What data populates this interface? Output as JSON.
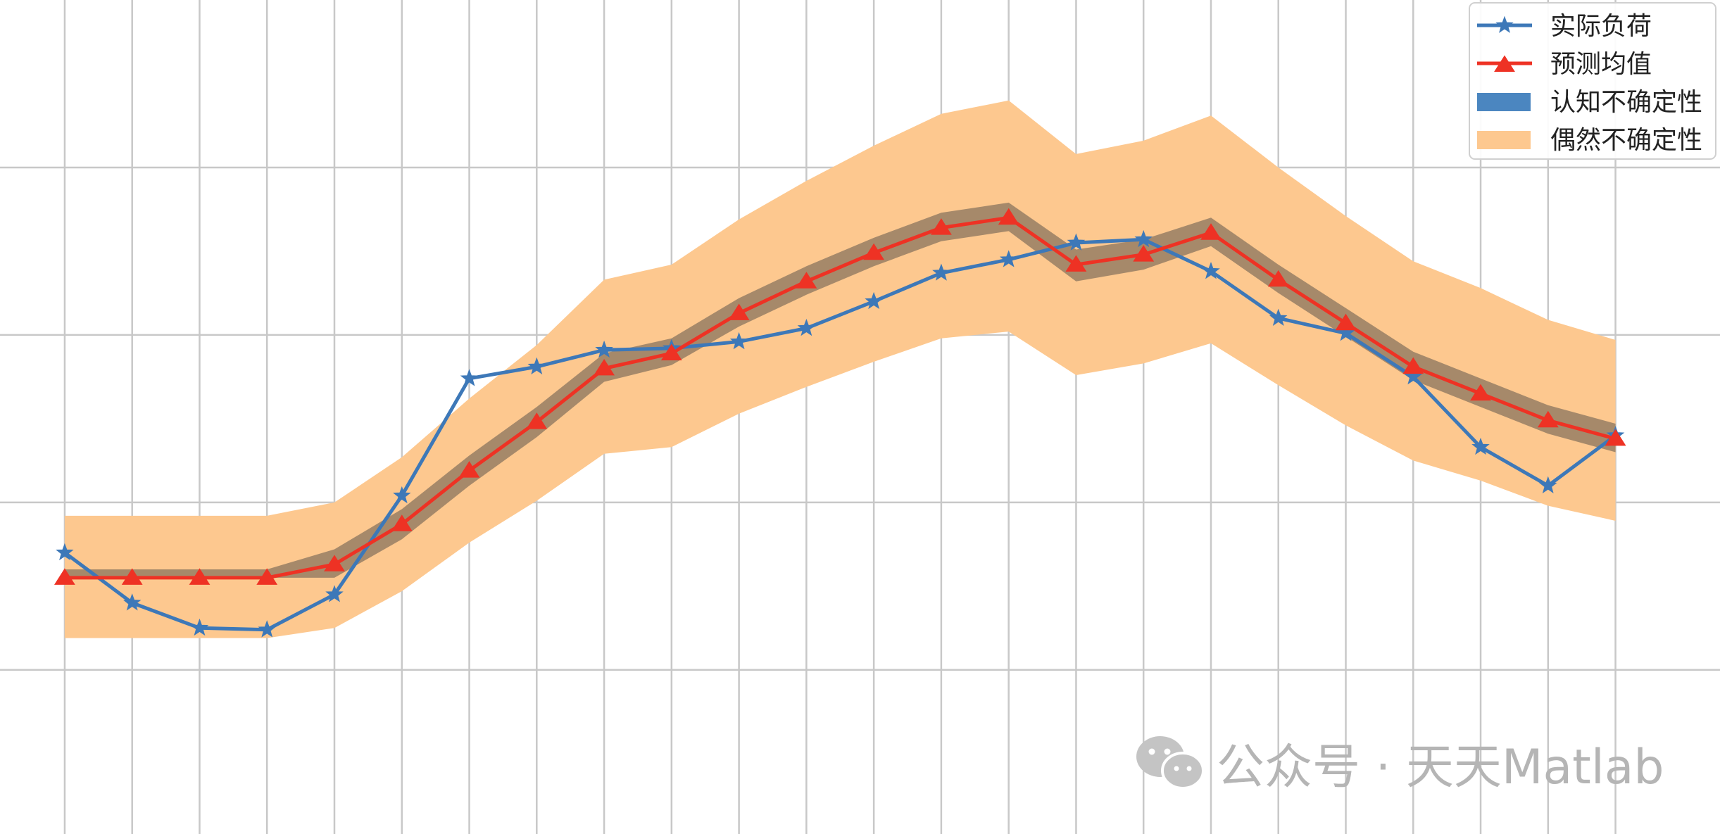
{
  "chart_data": {
    "type": "line",
    "title": "",
    "xlabel": "",
    "ylabel": "",
    "grid": true,
    "x": [
      1,
      2,
      3,
      4,
      5,
      6,
      7,
      8,
      9,
      10,
      11,
      12,
      13,
      14,
      15,
      16,
      17,
      18,
      19,
      20,
      21,
      22,
      23,
      24
    ],
    "xlim": [
      0.04,
      25.55
    ],
    "ylim": [
      -0.98,
      4.0
    ],
    "legend_position": "top-right",
    "series": [
      {
        "name": "实际负荷",
        "kind": "line",
        "marker": "star",
        "color": "#3d78b8",
        "values": [
          0.7,
          0.4,
          0.25,
          0.24,
          0.45,
          1.04,
          1.74,
          1.81,
          1.91,
          1.92,
          1.96,
          2.04,
          2.2,
          2.37,
          2.45,
          2.55,
          2.57,
          2.38,
          2.1,
          2.01,
          1.75,
          1.33,
          1.1,
          1.4
        ]
      },
      {
        "name": "预测均值",
        "kind": "line",
        "marker": "triangle",
        "color": "#ee3224",
        "values": [
          0.55,
          0.55,
          0.55,
          0.55,
          0.63,
          0.87,
          1.19,
          1.48,
          1.8,
          1.89,
          2.13,
          2.32,
          2.49,
          2.64,
          2.7,
          2.42,
          2.48,
          2.61,
          2.33,
          2.07,
          1.81,
          1.65,
          1.49,
          1.38
        ]
      },
      {
        "name": "认知不确定性",
        "kind": "band",
        "color": "#4b86c0",
        "lower": [
          0.55,
          0.55,
          0.55,
          0.55,
          0.55,
          0.78,
          1.1,
          1.39,
          1.72,
          1.82,
          2.05,
          2.24,
          2.41,
          2.56,
          2.62,
          2.32,
          2.39,
          2.53,
          2.25,
          1.99,
          1.73,
          1.57,
          1.41,
          1.3
        ],
        "upper": [
          0.6,
          0.6,
          0.6,
          0.6,
          0.72,
          0.96,
          1.28,
          1.57,
          1.89,
          1.98,
          2.22,
          2.41,
          2.58,
          2.73,
          2.79,
          2.51,
          2.57,
          2.7,
          2.42,
          2.16,
          1.9,
          1.74,
          1.58,
          1.47
        ]
      },
      {
        "name": "偶然不确定性",
        "kind": "band",
        "color": "#fdc88f",
        "lower": [
          0.19,
          0.19,
          0.19,
          0.19,
          0.25,
          0.47,
          0.76,
          1.01,
          1.29,
          1.33,
          1.53,
          1.69,
          1.84,
          1.98,
          2.02,
          1.76,
          1.83,
          1.95,
          1.7,
          1.46,
          1.25,
          1.13,
          0.98,
          0.89
        ],
        "upper": [
          0.92,
          0.92,
          0.92,
          0.92,
          1.0,
          1.27,
          1.62,
          1.94,
          2.33,
          2.42,
          2.69,
          2.92,
          3.13,
          3.32,
          3.4,
          3.08,
          3.16,
          3.31,
          3.0,
          2.71,
          2.44,
          2.28,
          2.09,
          1.97
        ]
      }
    ],
    "legend": [
      "实际负荷",
      "预测均值",
      "认知不确定性",
      "偶然不确定性"
    ]
  },
  "watermark": {
    "text": "公众号 · 天天Matlab",
    "icon": "wechat-icon"
  },
  "colors": {
    "grid": "#c8c8c8",
    "background": "#ffffff",
    "epistemic_overlap": "#a18668"
  }
}
